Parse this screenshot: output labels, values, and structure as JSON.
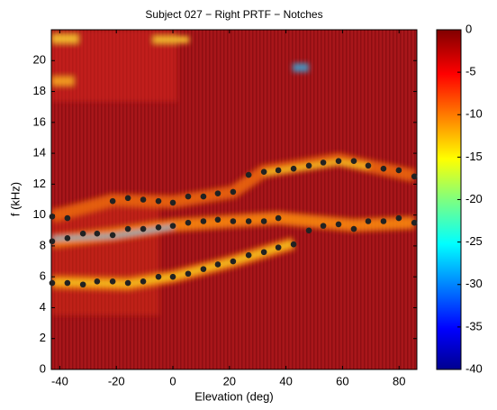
{
  "chart_data": {
    "type": "scatter",
    "title": "Subject 027 − Right PRTF − Notches",
    "x_label": "Elevation (deg)",
    "y_label": "f (kHz)",
    "color": "#222222",
    "x": [
      -42.7,
      -37.3,
      -31.8,
      -26.8,
      -21.3,
      -15.9,
      -10.5,
      -5.1,
      0,
      5.4,
      10.8,
      15.9,
      21.3,
      26.8,
      32.2,
      37.3,
      42.7,
      -42.7,
      -37.3,
      -31.8,
      -26.8,
      -21.3,
      -15.9,
      -10.5,
      -5.1,
      0,
      5.4,
      10.8,
      15.9,
      21.3,
      26.8,
      32.2,
      37.3,
      48.1,
      53.2,
      58.6,
      64.0,
      69.1,
      74.5,
      79.9,
      85.4,
      -42.7,
      -37.3,
      -21.3,
      -15.9,
      -10.5,
      -5.1,
      0,
      5.4,
      10.8,
      15.9,
      21.3,
      26.8,
      32.2,
      37.3,
      42.7,
      48.1,
      53.2,
      58.6,
      64.0,
      69.1,
      74.5,
      79.9,
      85.4
    ],
    "values": [
      5.6,
      5.6,
      5.5,
      5.7,
      5.7,
      5.6,
      5.7,
      6.0,
      6.0,
      6.2,
      6.5,
      6.8,
      7.0,
      7.4,
      7.6,
      7.9,
      8.1,
      8.3,
      8.5,
      8.8,
      8.8,
      8.7,
      9.1,
      9.1,
      9.2,
      9.3,
      9.5,
      9.6,
      9.7,
      9.6,
      9.6,
      9.6,
      9.8,
      9.0,
      9.3,
      9.4,
      9.1,
      9.6,
      9.6,
      9.8,
      9.5,
      9.9,
      9.8,
      10.9,
      11.1,
      11.0,
      10.9,
      10.8,
      11.2,
      11.2,
      11.4,
      11.5,
      12.6,
      12.8,
      12.9,
      13.0,
      13.2,
      13.4,
      13.5,
      13.5,
      13.2,
      13.0,
      12.9,
      12.5
    ],
    "xlim": [
      -43,
      86.3
    ],
    "ylim": [
      0,
      22
    ],
    "xticks": [
      -40,
      -20,
      0,
      20,
      40,
      60,
      80
    ],
    "yticks": [
      0,
      2,
      4,
      6,
      8,
      10,
      12,
      14,
      16,
      18,
      20
    ],
    "clim": [
      -40,
      0
    ],
    "cticks": [
      0,
      -5,
      -10,
      -15,
      -20,
      -25,
      -30,
      -35,
      -40
    ]
  }
}
